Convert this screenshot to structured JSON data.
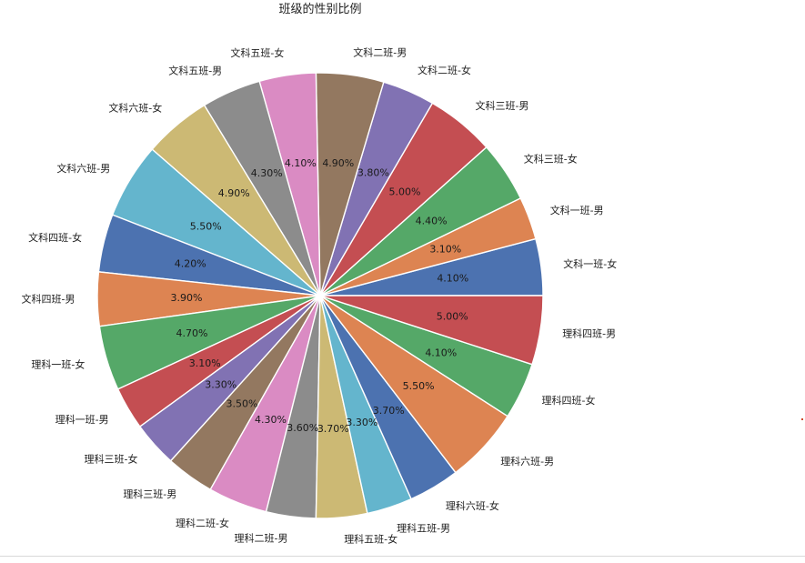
{
  "chart_data": {
    "type": "pie",
    "title": "班级的性别比例",
    "start_angle_deg": 0,
    "direction": "counterclockwise",
    "labels": [
      "文科一班-女",
      "文科一班-男",
      "文科三班-女",
      "文科三班-男",
      "文科二班-女",
      "文科二班-男",
      "文科五班-女",
      "文科五班-男",
      "文科六班-女",
      "文科六班-男",
      "文科四班-女",
      "文科四班-男",
      "理科一班-女",
      "理科一班-男",
      "理科三班-女",
      "理科三班-男",
      "理科二班-女",
      "理科二班-男",
      "理科五班-女",
      "理科五班-男",
      "理科六班-女",
      "理科六班-男",
      "理科四班-女",
      "理科四班-男"
    ],
    "values": [
      4.1,
      3.1,
      4.4,
      5.0,
      3.8,
      4.9,
      4.1,
      4.3,
      4.9,
      5.5,
      4.2,
      3.9,
      4.7,
      3.1,
      3.3,
      3.5,
      4.3,
      3.6,
      3.7,
      3.3,
      3.7,
      5.5,
      4.1,
      5.0
    ],
    "pct_labels": [
      "4.10%",
      "3.10%",
      "4.40%",
      "5.00%",
      "3.80%",
      "4.90%",
      "4.10%",
      "4.30%",
      "4.90%",
      "5.50%",
      "4.20%",
      "3.90%",
      "4.70%",
      "3.10%",
      "3.30%",
      "3.50%",
      "4.30%",
      "3.60%",
      "3.70%",
      "3.30%",
      "3.70%",
      "5.50%",
      "4.10%",
      "5.00%"
    ],
    "colors": [
      "#4c72b0",
      "#dd8452",
      "#55a868",
      "#c44e52",
      "#8172b3",
      "#937860",
      "#da8bc3",
      "#8c8c8c",
      "#ccb974",
      "#64b5cd"
    ]
  }
}
